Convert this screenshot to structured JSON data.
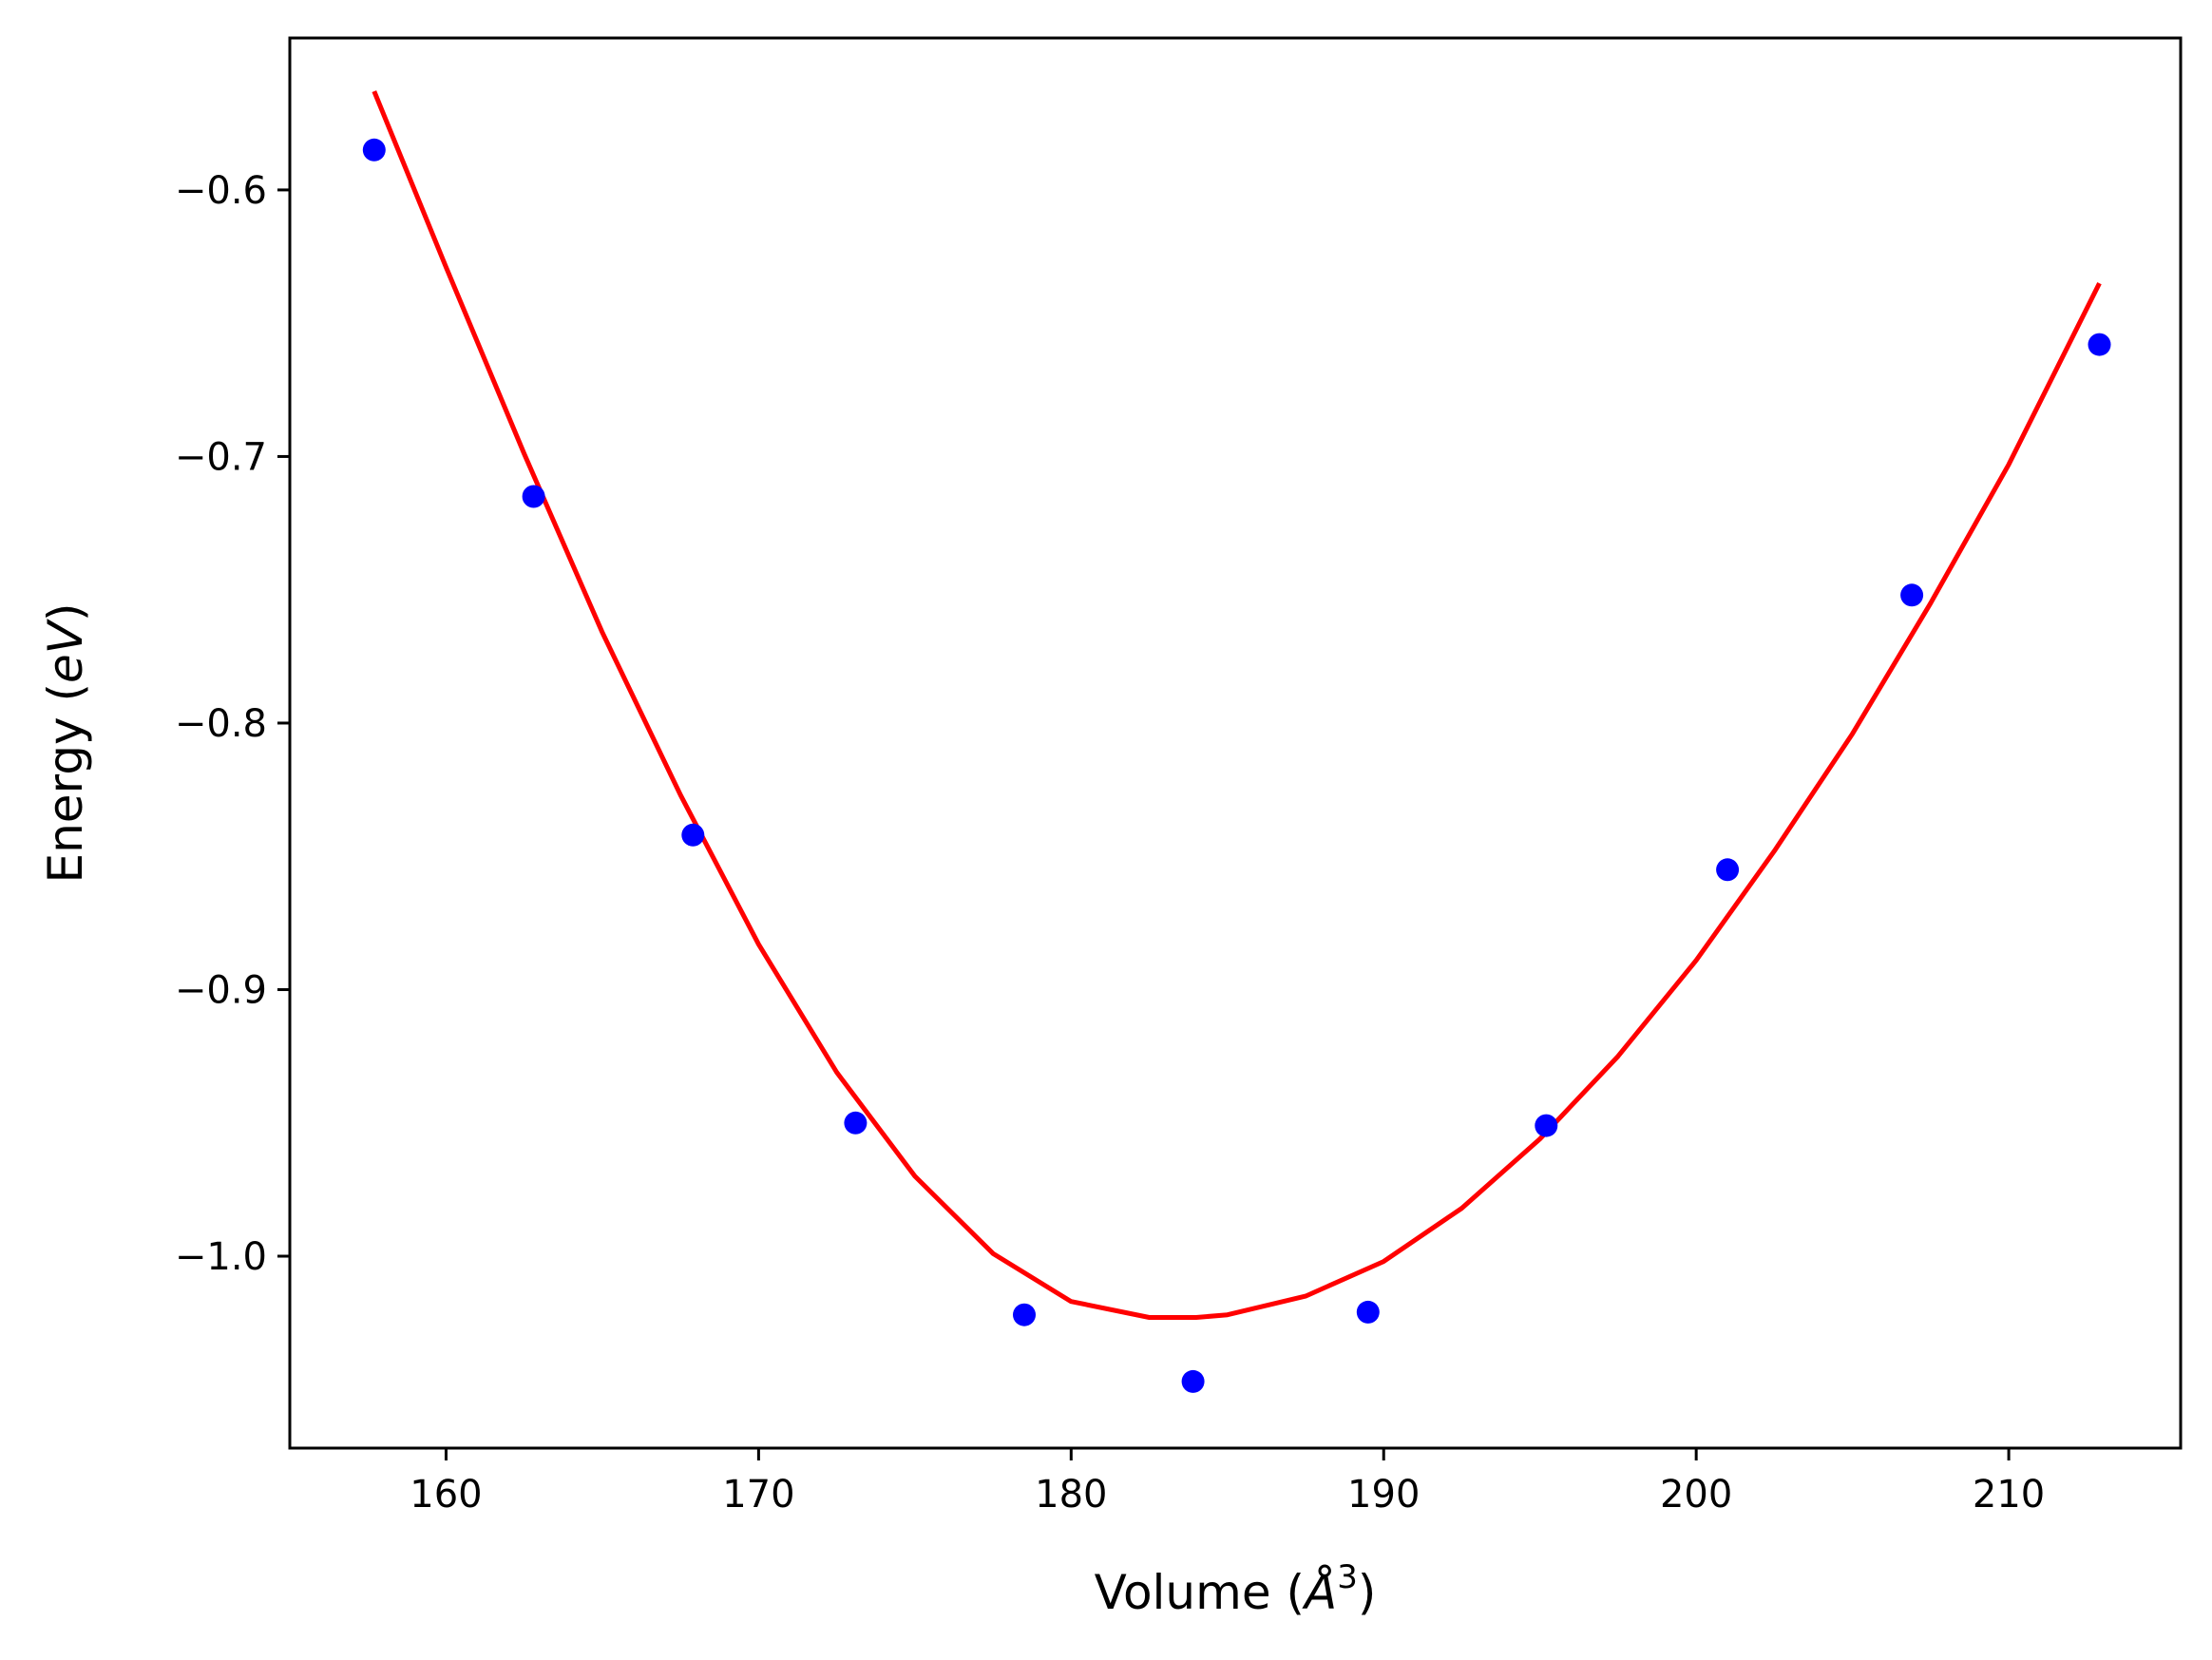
{
  "chart_data": {
    "type": "scatter",
    "title": "",
    "xlabel_prefix": "Volume (",
    "xlabel_symbol": "Å",
    "xlabel_exponent": "3",
    "xlabel_suffix": ")",
    "ylabel_prefix": "Energy (",
    "ylabel_unit": "eV",
    "ylabel_suffix": ")",
    "xlim": [
      155,
      215.5
    ],
    "ylim": [
      -1.072,
      -0.543
    ],
    "xticks": [
      160,
      170,
      180,
      190,
      200,
      210
    ],
    "xtick_labels": [
      "160",
      "170",
      "180",
      "190",
      "200",
      "210"
    ],
    "yticks": [
      -0.6,
      -0.7,
      -0.8,
      -0.9,
      -1.0
    ],
    "ytick_labels": [
      "−0.6",
      "−0.7",
      "−0.8",
      "−0.9",
      "−1.0"
    ],
    "grid": false,
    "legend": "none",
    "series": [
      {
        "kind": "points",
        "color": "#0000ff",
        "x": [
          157.7,
          162.8,
          167.9,
          173.1,
          178.5,
          183.9,
          189.5,
          195.2,
          201.0,
          206.9,
          212.9
        ],
        "y": [
          -0.585,
          -0.715,
          -0.842,
          -0.95,
          -1.022,
          -1.047,
          -1.021,
          -0.951,
          -0.855,
          -0.752,
          -0.658
        ]
      },
      {
        "kind": "fit-curve",
        "color": "#ff0000",
        "x": [
          157.7,
          160,
          162.5,
          165,
          167.5,
          170,
          172.5,
          175,
          177.5,
          180,
          182.5,
          184,
          185,
          187.5,
          190,
          192.5,
          195,
          197.5,
          200,
          202.5,
          205,
          207.5,
          210,
          212.9
        ],
        "y": [
          -0.563,
          -0.629,
          -0.699,
          -0.766,
          -0.827,
          -0.883,
          -0.931,
          -0.97,
          -0.999,
          -1.017,
          -1.023,
          -1.023,
          -1.022,
          -1.015,
          -1.002,
          -0.982,
          -0.956,
          -0.925,
          -0.889,
          -0.848,
          -0.804,
          -0.755,
          -0.703,
          -0.635
        ]
      }
    ]
  }
}
